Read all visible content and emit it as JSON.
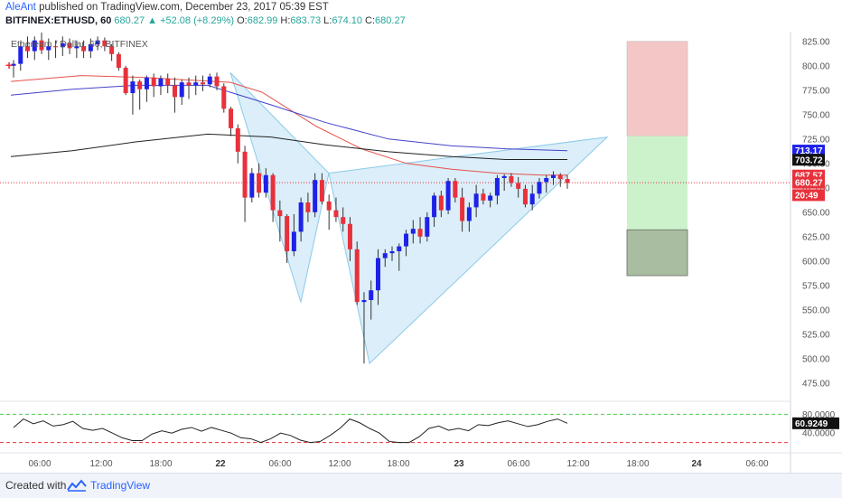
{
  "header": {
    "author": "AleAnt",
    "published_text": "published on TradingView.com, December 23, 2017 05:39 EST",
    "symbol": "BITFINEX:ETHUSD, 60",
    "change": "680.27 ▲ +52.08 (+8.29%)",
    "o_label": "O:",
    "o_value": "682.99",
    "h_label": "H:",
    "h_value": "683.73",
    "l_label": "L:",
    "l_value": "674.10",
    "c_label": "C:",
    "c_value": "680.27"
  },
  "footer": {
    "created_with": "Created with",
    "brand": "TradingView"
  },
  "colors": {
    "up": "#1e22e8",
    "down": "#e8313b",
    "pattern_fill": "#cfe8f7",
    "pattern_line": "#8ccae8",
    "ema_fast": "#e5534b",
    "ema_mid": "#4343c9",
    "ema_slow": "#222222",
    "sl_zone": "#f4c7c6",
    "tp_zone": "#ccf2cc",
    "stop_zone": "#a9bea0"
  },
  "chart_data": {
    "type": "candlestick",
    "title": "Ethereum / Dollar, 60, BITFINEX",
    "ylim": [
      460,
      835
    ],
    "price_ticks": [
      "825.00",
      "800.00",
      "775.00",
      "750.00",
      "725.00",
      "700.00",
      "675.00",
      "650.00",
      "625.00",
      "600.00",
      "575.00",
      "550.00",
      "525.00",
      "500.00",
      "475.00"
    ],
    "x_ticks": [
      "06:00",
      "12:00",
      "18:00",
      "22",
      "06:00",
      "12:00",
      "18:00",
      "23",
      "06:00",
      "12:00",
      "18:00",
      "24",
      "06:00"
    ],
    "candles": [
      {
        "o": 800,
        "h": 806,
        "l": 788,
        "c": 802
      },
      {
        "o": 802,
        "h": 825,
        "l": 795,
        "c": 820
      },
      {
        "o": 820,
        "h": 830,
        "l": 808,
        "c": 815
      },
      {
        "o": 815,
        "h": 830,
        "l": 806,
        "c": 826
      },
      {
        "o": 826,
        "h": 834,
        "l": 812,
        "c": 816
      },
      {
        "o": 816,
        "h": 828,
        "l": 806,
        "c": 820
      },
      {
        "o": 820,
        "h": 826,
        "l": 808,
        "c": 819
      },
      {
        "o": 819,
        "h": 830,
        "l": 810,
        "c": 823
      },
      {
        "o": 823,
        "h": 828,
        "l": 812,
        "c": 818
      },
      {
        "o": 818,
        "h": 826,
        "l": 808,
        "c": 820
      },
      {
        "o": 820,
        "h": 826,
        "l": 808,
        "c": 815
      },
      {
        "o": 815,
        "h": 828,
        "l": 808,
        "c": 822
      },
      {
        "o": 822,
        "h": 830,
        "l": 816,
        "c": 826
      },
      {
        "o": 826,
        "h": 829,
        "l": 815,
        "c": 820
      },
      {
        "o": 820,
        "h": 822,
        "l": 805,
        "c": 812
      },
      {
        "o": 812,
        "h": 814,
        "l": 795,
        "c": 798
      },
      {
        "o": 798,
        "h": 800,
        "l": 770,
        "c": 772
      },
      {
        "o": 772,
        "h": 790,
        "l": 750,
        "c": 784
      },
      {
        "o": 784,
        "h": 786,
        "l": 755,
        "c": 776
      },
      {
        "o": 776,
        "h": 790,
        "l": 763,
        "c": 788
      },
      {
        "o": 788,
        "h": 792,
        "l": 768,
        "c": 779
      },
      {
        "o": 779,
        "h": 790,
        "l": 770,
        "c": 787
      },
      {
        "o": 787,
        "h": 792,
        "l": 772,
        "c": 780
      },
      {
        "o": 780,
        "h": 788,
        "l": 752,
        "c": 768
      },
      {
        "o": 768,
        "h": 786,
        "l": 760,
        "c": 783
      },
      {
        "o": 783,
        "h": 788,
        "l": 766,
        "c": 780
      },
      {
        "o": 780,
        "h": 790,
        "l": 770,
        "c": 783
      },
      {
        "o": 783,
        "h": 790,
        "l": 774,
        "c": 781
      },
      {
        "o": 781,
        "h": 792,
        "l": 778,
        "c": 789
      },
      {
        "o": 789,
        "h": 793,
        "l": 775,
        "c": 779
      },
      {
        "o": 779,
        "h": 782,
        "l": 752,
        "c": 756
      },
      {
        "o": 756,
        "h": 758,
        "l": 728,
        "c": 736
      },
      {
        "o": 736,
        "h": 740,
        "l": 700,
        "c": 712
      },
      {
        "o": 712,
        "h": 718,
        "l": 640,
        "c": 665
      },
      {
        "o": 665,
        "h": 695,
        "l": 660,
        "c": 690
      },
      {
        "o": 690,
        "h": 700,
        "l": 665,
        "c": 670
      },
      {
        "o": 670,
        "h": 695,
        "l": 665,
        "c": 688
      },
      {
        "o": 688,
        "h": 690,
        "l": 640,
        "c": 652
      },
      {
        "o": 652,
        "h": 662,
        "l": 620,
        "c": 646
      },
      {
        "o": 646,
        "h": 648,
        "l": 598,
        "c": 610
      },
      {
        "o": 610,
        "h": 648,
        "l": 605,
        "c": 630
      },
      {
        "o": 630,
        "h": 665,
        "l": 620,
        "c": 660
      },
      {
        "o": 660,
        "h": 670,
        "l": 640,
        "c": 650
      },
      {
        "o": 650,
        "h": 690,
        "l": 645,
        "c": 683
      },
      {
        "o": 683,
        "h": 690,
        "l": 658,
        "c": 661
      },
      {
        "o": 661,
        "h": 668,
        "l": 632,
        "c": 652
      },
      {
        "o": 652,
        "h": 665,
        "l": 640,
        "c": 645
      },
      {
        "o": 645,
        "h": 655,
        "l": 630,
        "c": 638
      },
      {
        "o": 638,
        "h": 645,
        "l": 600,
        "c": 612
      },
      {
        "o": 612,
        "h": 620,
        "l": 555,
        "c": 558
      },
      {
        "o": 558,
        "h": 568,
        "l": 495,
        "c": 560
      },
      {
        "o": 560,
        "h": 580,
        "l": 540,
        "c": 570
      },
      {
        "o": 570,
        "h": 612,
        "l": 555,
        "c": 603
      },
      {
        "o": 603,
        "h": 612,
        "l": 594,
        "c": 608
      },
      {
        "o": 608,
        "h": 615,
        "l": 600,
        "c": 610
      },
      {
        "o": 610,
        "h": 618,
        "l": 590,
        "c": 615
      },
      {
        "o": 615,
        "h": 632,
        "l": 605,
        "c": 628
      },
      {
        "o": 628,
        "h": 642,
        "l": 618,
        "c": 633
      },
      {
        "o": 633,
        "h": 645,
        "l": 618,
        "c": 625
      },
      {
        "o": 625,
        "h": 650,
        "l": 620,
        "c": 645
      },
      {
        "o": 645,
        "h": 670,
        "l": 635,
        "c": 667
      },
      {
        "o": 667,
        "h": 672,
        "l": 645,
        "c": 652
      },
      {
        "o": 652,
        "h": 685,
        "l": 648,
        "c": 682
      },
      {
        "o": 682,
        "h": 685,
        "l": 660,
        "c": 665
      },
      {
        "o": 665,
        "h": 675,
        "l": 630,
        "c": 641
      },
      {
        "o": 641,
        "h": 660,
        "l": 630,
        "c": 655
      },
      {
        "o": 655,
        "h": 678,
        "l": 645,
        "c": 669
      },
      {
        "o": 669,
        "h": 674,
        "l": 658,
        "c": 662
      },
      {
        "o": 662,
        "h": 670,
        "l": 655,
        "c": 667
      },
      {
        "o": 667,
        "h": 688,
        "l": 658,
        "c": 685
      },
      {
        "o": 685,
        "h": 689,
        "l": 672,
        "c": 687
      },
      {
        "o": 687,
        "h": 690,
        "l": 676,
        "c": 680
      },
      {
        "o": 680,
        "h": 686,
        "l": 665,
        "c": 674
      },
      {
        "o": 674,
        "h": 678,
        "l": 655,
        "c": 658
      },
      {
        "o": 658,
        "h": 678,
        "l": 652,
        "c": 669
      },
      {
        "o": 669,
        "h": 685,
        "l": 664,
        "c": 681
      },
      {
        "o": 681,
        "h": 688,
        "l": 670,
        "c": 685
      },
      {
        "o": 685,
        "h": 692,
        "l": 678,
        "c": 688
      },
      {
        "o": 688,
        "h": 690,
        "l": 676,
        "c": 684
      },
      {
        "o": 684,
        "h": 688,
        "l": 674,
        "c": 680
      }
    ],
    "pattern": {
      "XAB": [
        [
          255,
          793
        ],
        [
          333,
          558
        ],
        [
          364,
          690
        ]
      ],
      "BCD": [
        [
          364,
          690
        ],
        [
          409,
          495
        ],
        [
          672,
          727
        ]
      ]
    },
    "emas": [
      {
        "name": "EMA fast",
        "points": [
          [
            12,
            784
          ],
          [
            90,
            790
          ],
          [
            160,
            788
          ],
          [
            255,
            783
          ],
          [
            290,
            773
          ],
          [
            350,
            738
          ],
          [
            400,
            715
          ],
          [
            450,
            700
          ],
          [
            500,
            694
          ],
          [
            550,
            690
          ],
          [
            600,
            688
          ],
          [
            628,
            688
          ]
        ]
      },
      {
        "name": "EMA mid",
        "points": [
          [
            12,
            770
          ],
          [
            80,
            776
          ],
          [
            150,
            780
          ],
          [
            230,
            780
          ],
          [
            300,
            760
          ],
          [
            360,
            742
          ],
          [
            430,
            725
          ],
          [
            500,
            718
          ],
          [
            560,
            715
          ],
          [
            628,
            713
          ]
        ]
      },
      {
        "name": "EMA slow",
        "points": [
          [
            12,
            707
          ],
          [
            80,
            713
          ],
          [
            150,
            722
          ],
          [
            230,
            730
          ],
          [
            300,
            727
          ],
          [
            360,
            719
          ],
          [
            430,
            712
          ],
          [
            500,
            707
          ],
          [
            560,
            704
          ],
          [
            628,
            704
          ]
        ]
      }
    ],
    "position": {
      "stop_top": 825,
      "entry": 728,
      "target": 632,
      "bottom": 585
    },
    "current_line": 680.27,
    "price_labels": [
      {
        "text": "713.17",
        "value": 713.17,
        "bg": "#1e22e8",
        "fg": "#ffffff"
      },
      {
        "text": "703.72",
        "value": 703.72,
        "bg": "#111111",
        "fg": "#ffffff"
      },
      {
        "text": "687.57",
        "value": 687.57,
        "bg": "#e8313b",
        "fg": "#ffffff"
      },
      {
        "text": "680.27",
        "value": 680.27,
        "bg": "#e8313b",
        "fg": "#ffffff"
      },
      {
        "text": "20:49",
        "value": 667.5,
        "bg": "#e8313b",
        "fg": "#ffffff"
      }
    ],
    "oscillator": {
      "upper": 80,
      "lower": 20,
      "tick_labels": [
        "80.0000",
        "40.0000"
      ],
      "value_label": "60.9249",
      "values": [
        52,
        70,
        60,
        66,
        55,
        58,
        65,
        50,
        46,
        50,
        40,
        30,
        24,
        24,
        38,
        45,
        40,
        48,
        52,
        44,
        52,
        46,
        40,
        30,
        28,
        20,
        28,
        40,
        35,
        25,
        20,
        22,
        35,
        50,
        70,
        62,
        50,
        40,
        22,
        20,
        20,
        32,
        50,
        55,
        46,
        50,
        45,
        58,
        56,
        62,
        66,
        60,
        54,
        58,
        65,
        70,
        61
      ]
    }
  }
}
